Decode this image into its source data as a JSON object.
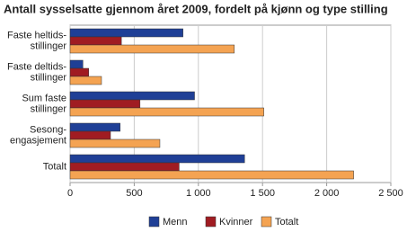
{
  "chart_data": {
    "type": "hbar",
    "title": "Antall sysselsatte gjennom året 2009, fordelt på kjønn og type stilling",
    "categories": [
      [
        "Faste heltids-",
        "stillinger"
      ],
      [
        "Faste deltids-",
        "stillinger"
      ],
      [
        "Sum faste",
        "stillinger"
      ],
      [
        "Sesong-",
        "engasjement"
      ],
      [
        "Totalt"
      ]
    ],
    "series": [
      {
        "name": "Menn",
        "color": "#1f3f96",
        "values": [
          880,
          100,
          970,
          390,
          1360
        ]
      },
      {
        "name": "Kvinner",
        "color": "#a01c22",
        "values": [
          400,
          145,
          545,
          315,
          850
        ]
      },
      {
        "name": "Totalt",
        "color": "#f4a352",
        "values": [
          1280,
          245,
          1510,
          700,
          2210
        ]
      }
    ],
    "xlim": [
      0,
      2500
    ],
    "xticks": [
      0,
      500,
      {
        "value": 1000,
        "label": "1 000"
      },
      {
        "value": 1500,
        "label": "1 500"
      },
      {
        "value": 2000,
        "label": "2 000"
      },
      {
        "value": 2500,
        "label": "2 500"
      }
    ],
    "grid": true,
    "legend": "bottom"
  }
}
